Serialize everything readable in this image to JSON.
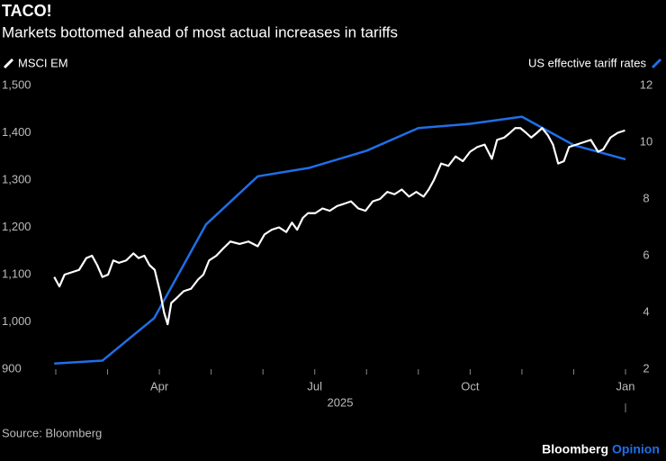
{
  "chart_data": {
    "type": "line",
    "title": "TACO!",
    "subtitle": "Markets bottomed ahead of most actual increases in tariffs",
    "source": "Source: Bloomberg",
    "brand": [
      "Bloomberg",
      "Opinion"
    ],
    "xlabel": "2025",
    "xlim": [
      1.95,
      13.05
    ],
    "xticks": [
      {
        "value": 4,
        "label": "Apr"
      },
      {
        "value": 7,
        "label": "Jul"
      },
      {
        "value": 10,
        "label": "Oct"
      },
      {
        "value": 13,
        "label": "Jan"
      }
    ],
    "xminor_ticks": [
      2,
      3,
      5,
      6,
      8,
      9,
      11,
      12
    ],
    "ylim": [
      900,
      1500
    ],
    "yticks": [
      {
        "value": 900,
        "label": "900"
      },
      {
        "value": 1000,
        "label": "1,000"
      },
      {
        "value": 1100,
        "label": "1,100"
      },
      {
        "value": 1200,
        "label": "1,200"
      },
      {
        "value": 1300,
        "label": "1,300"
      },
      {
        "value": 1400,
        "label": "1,400"
      },
      {
        "value": 1500,
        "label": "1,500"
      }
    ],
    "y2lim": [
      2,
      12
    ],
    "y2ticks": [
      2,
      4,
      6,
      8,
      10,
      12
    ],
    "series": [
      {
        "name": "MSCI EM",
        "color": "#ffffff",
        "x": [
          1.97,
          2.07,
          2.17,
          2.31,
          2.45,
          2.59,
          2.7,
          2.8,
          2.9,
          3.01,
          3.11,
          3.22,
          3.36,
          3.5,
          3.6,
          3.71,
          3.81,
          3.91,
          4.02,
          4.09,
          4.16,
          4.23,
          4.33,
          4.47,
          4.61,
          4.75,
          4.85,
          4.96,
          5.1,
          5.23,
          5.37,
          5.55,
          5.72,
          5.9,
          6.03,
          6.17,
          6.31,
          6.45,
          6.56,
          6.66,
          6.77,
          6.87,
          7.01,
          7.15,
          7.29,
          7.43,
          7.57,
          7.7,
          7.84,
          7.98,
          8.12,
          8.26,
          8.4,
          8.54,
          8.68,
          8.82,
          8.96,
          9.1,
          9.2,
          9.3,
          9.44,
          9.58,
          9.72,
          9.86,
          10.0,
          10.14,
          10.28,
          10.42,
          10.52,
          10.66,
          10.77,
          10.87,
          10.97,
          11.08,
          11.18,
          11.29,
          11.39,
          11.5,
          11.6,
          11.7,
          11.81,
          11.91,
          12.05,
          12.19,
          12.33,
          12.47,
          12.57,
          12.71,
          12.85,
          12.99
        ],
        "values": [
          1095,
          1075,
          1100,
          1105,
          1110,
          1135,
          1140,
          1120,
          1095,
          1100,
          1130,
          1125,
          1130,
          1145,
          1135,
          1140,
          1120,
          1110,
          1060,
          1020,
          995,
          1040,
          1050,
          1065,
          1070,
          1090,
          1100,
          1130,
          1140,
          1155,
          1170,
          1165,
          1170,
          1160,
          1185,
          1195,
          1200,
          1190,
          1210,
          1195,
          1220,
          1230,
          1230,
          1240,
          1235,
          1245,
          1250,
          1255,
          1240,
          1235,
          1255,
          1260,
          1275,
          1270,
          1280,
          1265,
          1275,
          1265,
          1280,
          1300,
          1335,
          1330,
          1350,
          1340,
          1360,
          1370,
          1375,
          1345,
          1385,
          1390,
          1400,
          1410,
          1410,
          1400,
          1390,
          1400,
          1410,
          1395,
          1375,
          1335,
          1340,
          1370,
          1375,
          1380,
          1385,
          1360,
          1365,
          1390,
          1400,
          1405
        ]
      },
      {
        "name": "US effective tariff rates",
        "color": "#1f6fe8",
        "axis": "y2",
        "x": [
          1.97,
          2.9,
          3.9,
          4.9,
          5.9,
          6.9,
          8.0,
          9.0,
          10.0,
          11.0,
          12.0,
          13.0
        ],
        "values": [
          2.2,
          2.3,
          3.8,
          7.1,
          8.8,
          9.1,
          9.7,
          10.5,
          10.65,
          10.9,
          9.9,
          9.4
        ]
      }
    ]
  }
}
